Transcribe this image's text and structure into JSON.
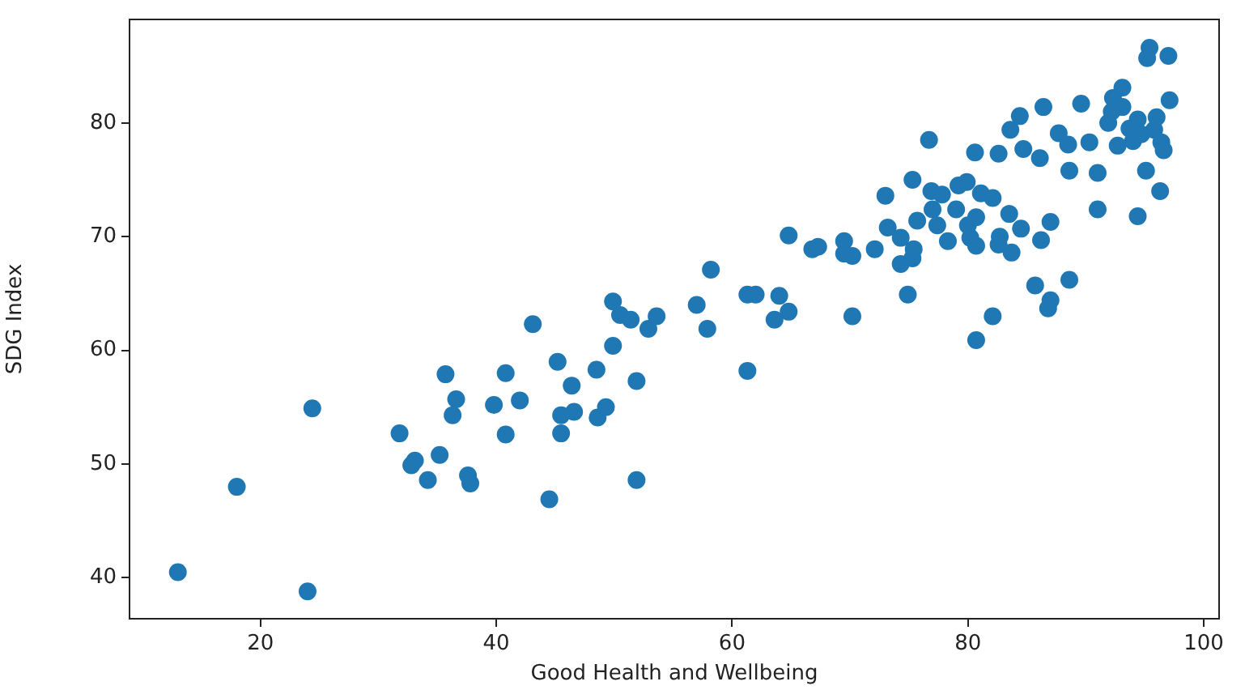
{
  "chart_data": {
    "type": "scatter",
    "xlabel": "Good Health and Wellbeing",
    "ylabel": "SDG Index",
    "xlim": [
      8.9,
      101.3
    ],
    "ylim": [
      36.4,
      89.1
    ],
    "xticks": [
      20,
      40,
      60,
      80,
      100
    ],
    "yticks": [
      40,
      50,
      60,
      70,
      80
    ],
    "grid": false,
    "legend": false,
    "marker": "circle",
    "series": [
      {
        "color": "#1f77b4",
        "x": [
          13.0,
          24.0,
          18.0,
          24.4,
          31.8,
          33.1,
          32.8,
          34.2,
          35.2,
          35.7,
          36.6,
          36.3,
          37.6,
          37.8,
          39.8,
          40.8,
          40.8,
          42.0,
          43.1,
          44.5,
          45.2,
          45.5,
          45.5,
          46.6,
          46.4,
          48.5,
          48.6,
          49.3,
          49.9,
          49.9,
          50.5,
          51.4,
          51.9,
          51.9,
          52.9,
          53.6,
          57.0,
          57.9,
          58.2,
          61.3,
          61.3,
          62.0,
          64.0,
          63.6,
          64.8,
          64.8,
          66.8,
          67.3,
          69.5,
          69.5,
          70.2,
          70.2,
          72.1,
          73.0,
          73.2,
          74.3,
          74.3,
          75.3,
          75.4,
          74.9,
          75.3,
          75.7,
          76.7,
          76.9,
          77.0,
          77.4,
          77.8,
          78.3,
          79.0,
          79.2,
          79.9,
          80.2,
          80.0,
          80.6,
          80.7,
          80.7,
          80.7,
          81.1,
          82.1,
          82.1,
          82.6,
          82.7,
          82.6,
          83.5,
          83.7,
          83.6,
          84.4,
          84.7,
          84.5,
          85.7,
          86.1,
          86.2,
          86.4,
          87.0,
          87.0,
          86.8,
          87.7,
          88.5,
          88.6,
          88.6,
          89.6,
          90.3,
          91.0,
          91.0,
          91.9,
          92.3,
          92.7,
          93.1,
          93.1,
          93.7,
          94.0,
          94.4,
          94.4,
          95.1,
          95.4,
          95.2,
          95.8,
          96.0,
          96.4,
          96.6,
          96.3,
          97.0,
          97.1,
          92.2,
          94.7
        ],
        "values": [
          40.5,
          38.8,
          48.0,
          54.9,
          52.7,
          50.3,
          49.9,
          48.6,
          50.8,
          57.9,
          55.7,
          54.3,
          49.0,
          48.3,
          55.2,
          58.0,
          52.6,
          55.6,
          62.3,
          46.9,
          59.0,
          54.3,
          52.7,
          54.6,
          56.9,
          58.3,
          54.1,
          55.0,
          60.4,
          64.3,
          63.1,
          62.7,
          57.3,
          48.6,
          61.9,
          63.0,
          64.0,
          61.9,
          67.1,
          58.2,
          64.9,
          64.9,
          64.8,
          62.7,
          63.4,
          70.1,
          68.9,
          69.1,
          69.6,
          68.5,
          68.3,
          63.0,
          68.9,
          73.6,
          70.8,
          69.9,
          67.6,
          68.1,
          68.9,
          64.9,
          75.0,
          71.4,
          78.5,
          74.0,
          72.4,
          71.0,
          73.7,
          69.6,
          72.4,
          74.5,
          74.8,
          69.9,
          71.0,
          77.4,
          71.7,
          69.2,
          60.9,
          73.8,
          73.4,
          63.0,
          77.3,
          70.0,
          69.3,
          72.0,
          68.6,
          79.4,
          80.6,
          77.7,
          70.7,
          65.7,
          76.9,
          69.7,
          81.4,
          71.3,
          64.4,
          63.7,
          79.1,
          78.1,
          75.8,
          66.2,
          81.7,
          78.3,
          75.6,
          72.4,
          80.0,
          82.2,
          78.0,
          83.1,
          81.4,
          79.5,
          78.4,
          71.8,
          80.3,
          75.8,
          86.6,
          85.7,
          79.4,
          80.5,
          78.3,
          77.6,
          74.0,
          85.9,
          82.0,
          81.0,
          79.0
        ]
      }
    ]
  }
}
